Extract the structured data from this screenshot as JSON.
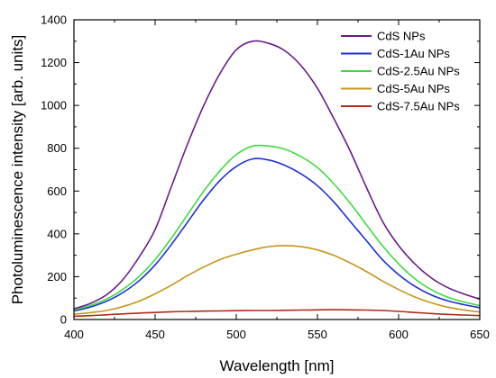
{
  "chart_data": {
    "type": "line",
    "title": "",
    "xlabel": "Wavelength [nm]",
    "ylabel": "Photoluminescence intensity [arb. units]",
    "xlim": [
      400,
      650
    ],
    "ylim": [
      0,
      1400
    ],
    "xticks": [
      400,
      450,
      500,
      550,
      600,
      650
    ],
    "yticks": [
      0,
      200,
      400,
      600,
      800,
      1000,
      1200,
      1400
    ],
    "grid": false,
    "legend_position": "top-right",
    "x": [
      400,
      410,
      420,
      430,
      440,
      450,
      460,
      470,
      480,
      490,
      500,
      510,
      520,
      530,
      540,
      550,
      560,
      570,
      580,
      590,
      600,
      610,
      620,
      630,
      640,
      650
    ],
    "series": [
      {
        "name": "CdS NPs",
        "color": "#6a1a8a",
        "values": [
          50,
          75,
          115,
          185,
          290,
          420,
          620,
          820,
          1000,
          1150,
          1260,
          1300,
          1290,
          1255,
          1185,
          1080,
          940,
          790,
          620,
          460,
          345,
          260,
          195,
          150,
          120,
          95
        ]
      },
      {
        "name": "CdS-1Au NPs",
        "color": "#1e2fd6",
        "values": [
          40,
          58,
          85,
          125,
          180,
          255,
          350,
          455,
          560,
          650,
          715,
          750,
          745,
          720,
          680,
          625,
          550,
          460,
          370,
          280,
          210,
          155,
          115,
          88,
          70,
          55
        ]
      },
      {
        "name": "CdS-2.5Au NPs",
        "color": "#3ddc3d",
        "values": [
          45,
          65,
          95,
          140,
          200,
          280,
          380,
          490,
          600,
          695,
          770,
          810,
          810,
          795,
          760,
          710,
          635,
          545,
          445,
          345,
          260,
          190,
          140,
          105,
          82,
          65
        ]
      },
      {
        "name": "CdS-5Au NPs",
        "color": "#c9941a",
        "values": [
          25,
          32,
          42,
          60,
          85,
          120,
          160,
          205,
          245,
          280,
          305,
          325,
          340,
          345,
          340,
          325,
          300,
          265,
          225,
          180,
          140,
          105,
          78,
          58,
          45,
          35
        ]
      },
      {
        "name": "CdS-7.5Au NPs",
        "color": "#b02a1a",
        "values": [
          15,
          18,
          22,
          26,
          30,
          33,
          36,
          38,
          39,
          40,
          41,
          42,
          42,
          43,
          44,
          45,
          46,
          45,
          44,
          42,
          38,
          33,
          28,
          24,
          21,
          18
        ]
      }
    ]
  }
}
